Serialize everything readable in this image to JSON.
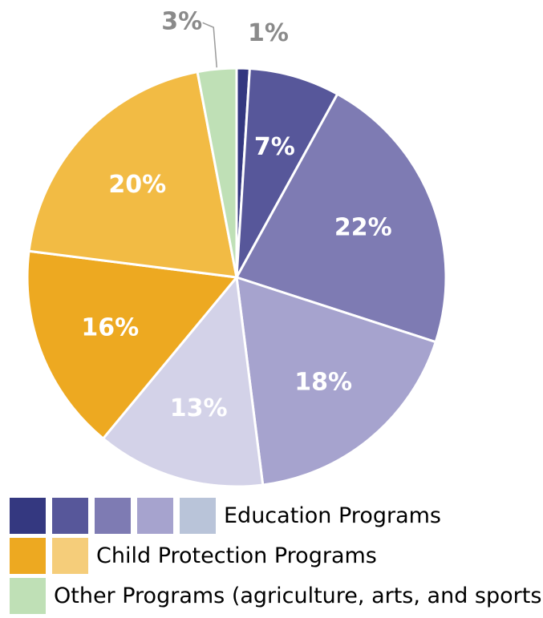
{
  "chart_data": {
    "type": "pie",
    "title": "",
    "slices": [
      {
        "value": 1,
        "label": "1%",
        "color": "#343880",
        "group": "education"
      },
      {
        "value": 7,
        "label": "7%",
        "color": "#57579a",
        "group": "education"
      },
      {
        "value": 22,
        "label": "22%",
        "color": "#7e7bb3",
        "group": "education"
      },
      {
        "value": 18,
        "label": "18%",
        "color": "#a6a3ce",
        "group": "education"
      },
      {
        "value": 13,
        "label": "13%",
        "color": "#d3d2e8",
        "group": "education"
      },
      {
        "value": 16,
        "label": "16%",
        "color": "#eda921",
        "group": "child_protection"
      },
      {
        "value": 20,
        "label": "20%",
        "color": "#f2bb44",
        "group": "child_protection"
      },
      {
        "value": 3,
        "label": "3%",
        "color": "#bfe0b6",
        "group": "other"
      }
    ],
    "legend": [
      {
        "label": "Education Programs",
        "swatches": [
          "#343880",
          "#57579a",
          "#7e7bb3",
          "#a6a3ce",
          "#b9c4d9"
        ]
      },
      {
        "label": "Child Protection Programs",
        "swatches": [
          "#eda921",
          "#f5cd7a"
        ]
      },
      {
        "label": "Other Programs (agriculture, arts, and sports)",
        "swatches": [
          "#bfe0b6"
        ]
      }
    ]
  }
}
